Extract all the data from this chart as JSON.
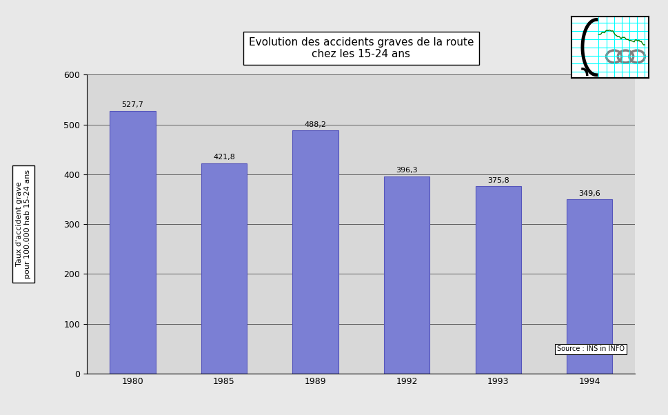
{
  "title_line1": "Evolution des accidents graves de la route",
  "title_line2": "chez les 15-24 ans",
  "categories": [
    "1980",
    "1985",
    "1989",
    "1992",
    "1993",
    "1994"
  ],
  "values": [
    527.7,
    421.8,
    488.2,
    396.3,
    375.8,
    349.6
  ],
  "bar_color": "#7B7FD4",
  "bar_edgecolor": "#5555BB",
  "fig_background": "#E8E8E8",
  "plot_background": "#D8D8D8",
  "ylim": [
    0,
    600
  ],
  "yticks": [
    0,
    100,
    200,
    300,
    400,
    500,
    600
  ],
  "ylabel_line1": "Taux d'accident grave",
  "ylabel_line2": "pour 100.000 hab 15-24 ans",
  "source_text": "Source : INS in INFO",
  "value_labels": [
    "527,7",
    "421,8",
    "488,2",
    "396,3",
    "375,8",
    "349,6"
  ],
  "title_fontsize": 11,
  "label_fontsize": 8,
  "tick_fontsize": 9,
  "ylabel_fontsize": 8
}
